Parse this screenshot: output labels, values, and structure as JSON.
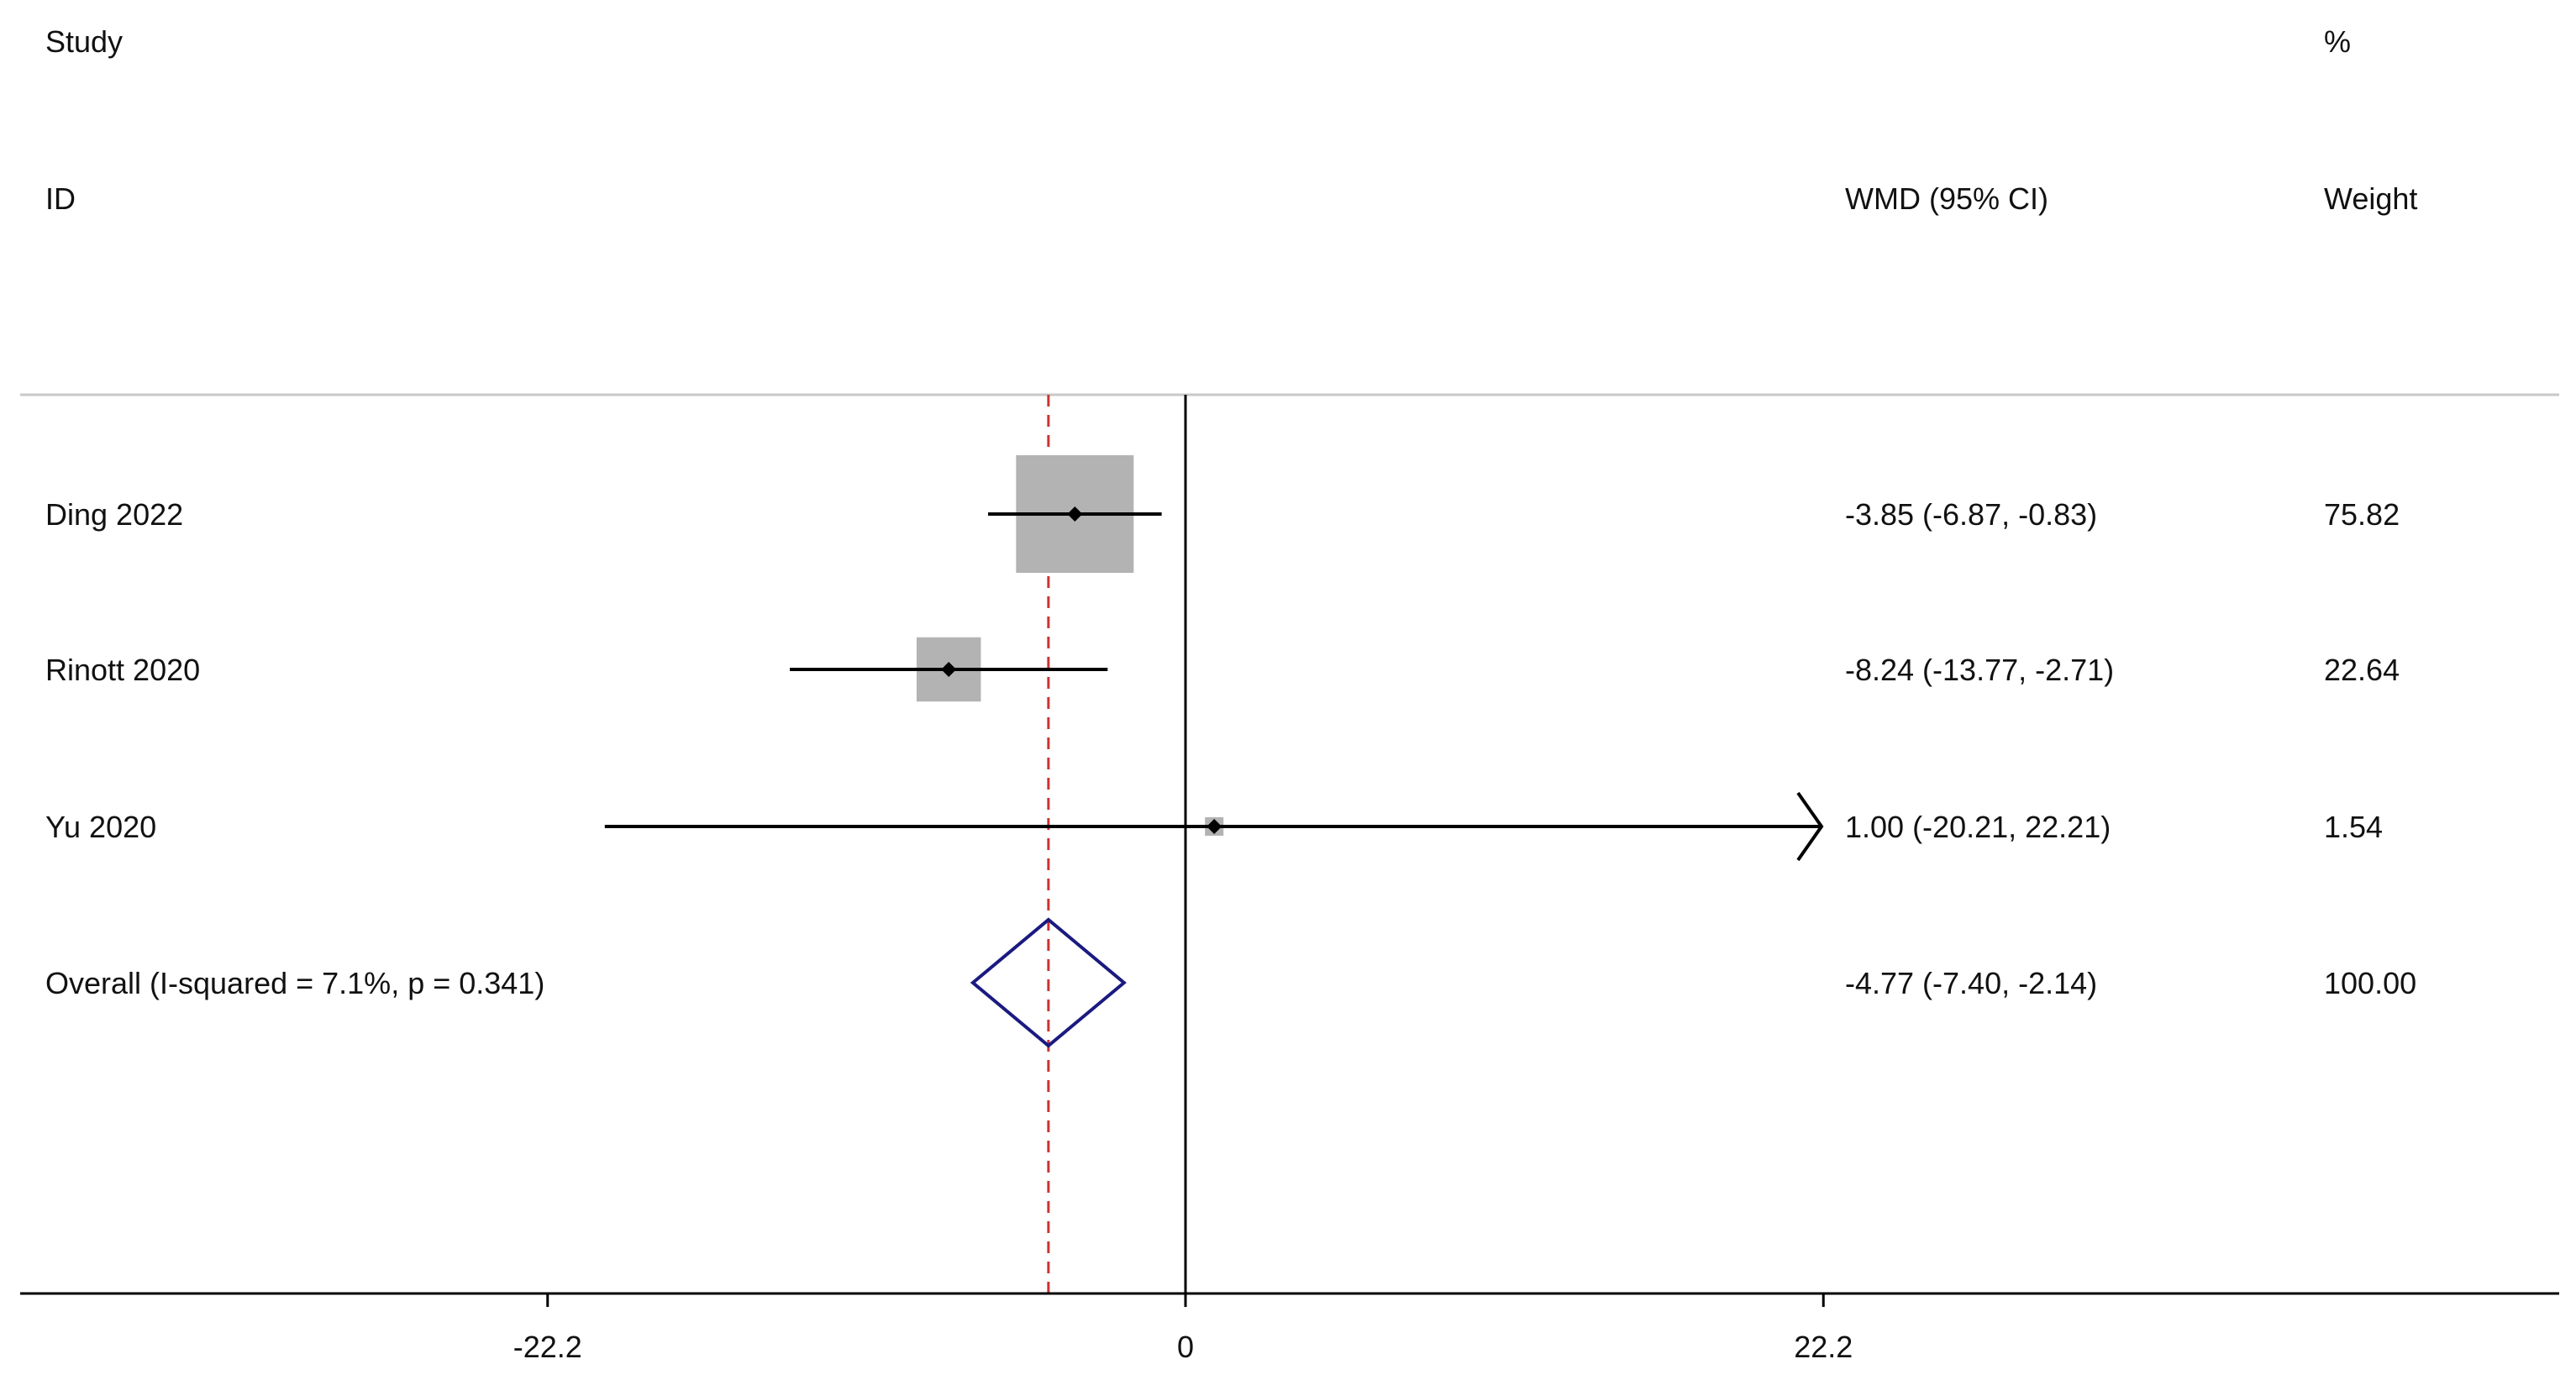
{
  "header": {
    "study_line1": "Study",
    "study_line2": "ID",
    "effect_header": "WMD (95% CI)",
    "weight_line1": "%",
    "weight_line2": "Weight"
  },
  "chart_data": {
    "type": "forest",
    "effect_measure": "WMD",
    "studies": [
      {
        "label": "Ding 2022",
        "estimate": -3.85,
        "ci_low": -6.87,
        "ci_high": -0.83,
        "ci_text": "-3.85 (-6.87, -0.83)",
        "weight": 75.82,
        "weight_text": "75.82"
      },
      {
        "label": "Rinott 2020",
        "estimate": -8.24,
        "ci_low": -13.77,
        "ci_high": -2.71,
        "ci_text": "-8.24 (-13.77, -2.71)",
        "weight": 22.64,
        "weight_text": "22.64"
      },
      {
        "label": "Yu 2020",
        "estimate": 1.0,
        "ci_low": -20.21,
        "ci_high": 22.21,
        "ci_text": "1.00 (-20.21, 22.21)",
        "weight": 1.54,
        "weight_text": "1.54"
      }
    ],
    "overall": {
      "label": "Overall  (I-squared = 7.1%, p = 0.341)",
      "estimate": -4.77,
      "ci_low": -7.4,
      "ci_high": -2.14,
      "ci_text": "-4.77 (-7.40, -2.14)",
      "weight_text": "100.00"
    },
    "xaxis": {
      "ticks": [
        -22.2,
        0,
        22.2
      ],
      "tick_labels": [
        "-22.2",
        "0",
        "22.2"
      ],
      "xlim": [
        -22.2,
        22.2
      ]
    },
    "colors": {
      "box": "#b3b3b3",
      "line": "#000000",
      "diamond": "#1a1a80",
      "reference_line": "#000000",
      "overall_line": "#cc3333",
      "separator": "#c8c8c8"
    }
  }
}
